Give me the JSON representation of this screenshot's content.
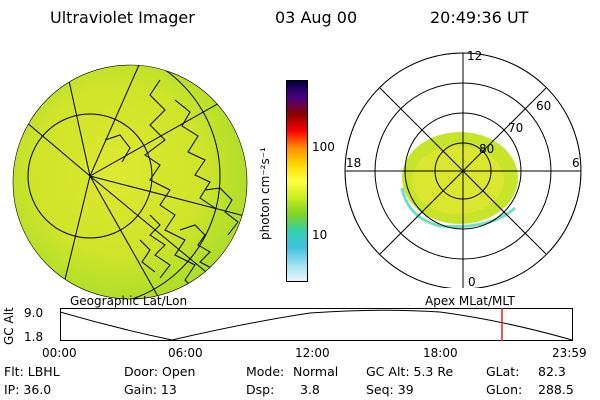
{
  "header": {
    "title": "Ultraviolet Imager",
    "date": "03 Aug 00",
    "time": "20:49:36 UT"
  },
  "colorbar": {
    "unit_label": "photon cm⁻²s⁻¹",
    "ticks": [
      "100",
      "10"
    ],
    "colors": [
      "#000040",
      "#4b0082",
      "#8b0000",
      "#ff0000",
      "#ff8c00",
      "#ffd700",
      "#ffff40",
      "#c8ee20",
      "#7ed321",
      "#30d0b0",
      "#40c0e0",
      "#a0e0f0",
      "#e8f6fa"
    ]
  },
  "left_panel": {
    "label": "Geographic Lat/Lon"
  },
  "right_panel": {
    "label": "Apex MLat/MLT",
    "mlt_labels": {
      "top": "12",
      "left": "18",
      "right": "6",
      "bottom": "0"
    },
    "lat_labels": [
      "60",
      "70",
      "80"
    ]
  },
  "timeline": {
    "axis_label": "GC Alt",
    "y_ticks": [
      "9.0",
      "1.8"
    ],
    "x_ticks": [
      "00:00",
      "06:00",
      "12:00",
      "18:00",
      "23:59"
    ],
    "marker_color": "#e02020"
  },
  "info": {
    "flt": "Flt: LBHL",
    "ip": "IP: 36.0",
    "door": "Door: Open",
    "gain": "Gain: 13",
    "mode_label": "Mode:",
    "mode_value": "Normal",
    "dsp_label": "Dsp:",
    "dsp_value": "3.8",
    "gcalt": "GC Alt: 5.3 Re",
    "seq": "Seq: 39",
    "glat_label": "GLat:",
    "glat_value": "82.3",
    "glon_label": "GLon:",
    "glon_value": "288.5"
  }
}
